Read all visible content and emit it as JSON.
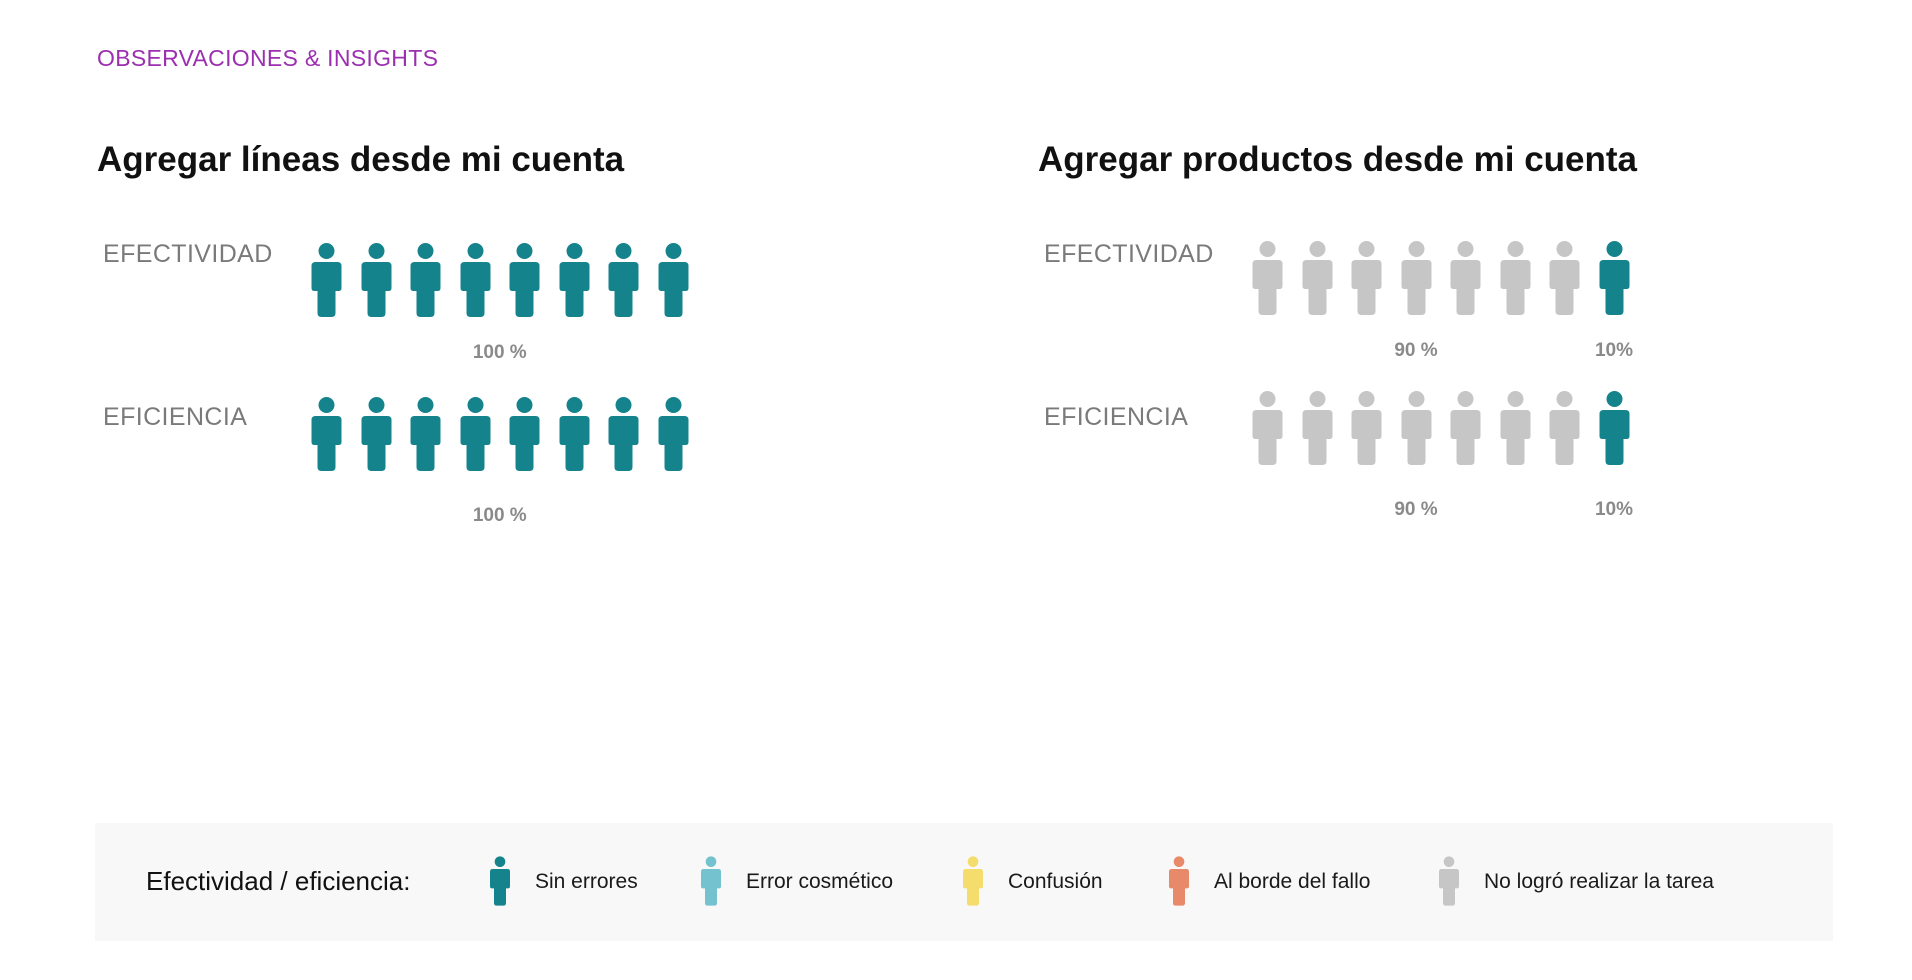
{
  "header": {
    "eyebrow": "OBSERVACIONES & INSIGHTS"
  },
  "colors": {
    "sin_errores": "#14838c",
    "error_cosmetico": "#74c1cf",
    "confusion": "#f4dd6c",
    "al_borde_del_fallo": "#e8896a",
    "no_logro": "#c6c6c6",
    "eyebrow": "#9b2fb0"
  },
  "panels": [
    {
      "title": "Agregar líneas desde mi cuenta",
      "rows": [
        {
          "label": "EFECTIVIDAD",
          "figures": [
            "sin_errores",
            "sin_errores",
            "sin_errores",
            "sin_errores",
            "sin_errores",
            "sin_errores",
            "sin_errores",
            "sin_errores"
          ],
          "percents": [
            {
              "text": "100 %",
              "share": 1.0
            }
          ]
        },
        {
          "label": "EFICIENCIA",
          "figures": [
            "sin_errores",
            "sin_errores",
            "sin_errores",
            "sin_errores",
            "sin_errores",
            "sin_errores",
            "sin_errores",
            "sin_errores"
          ],
          "percents": [
            {
              "text": "100 %",
              "share": 1.0
            }
          ]
        }
      ]
    },
    {
      "title": "Agregar productos desde mi cuenta",
      "rows": [
        {
          "label": "EFECTIVIDAD",
          "figures": [
            "no_logro",
            "no_logro",
            "no_logro",
            "no_logro",
            "no_logro",
            "no_logro",
            "no_logro",
            "sin_errores"
          ],
          "percents": [
            {
              "text": "90 %",
              "share": 0.9
            },
            {
              "text": "10%",
              "share": 0.1
            }
          ]
        },
        {
          "label": "EFICIENCIA",
          "figures": [
            "no_logro",
            "no_logro",
            "no_logro",
            "no_logro",
            "no_logro",
            "no_logro",
            "no_logro",
            "sin_errores"
          ],
          "percents": [
            {
              "text": "90 %",
              "share": 0.9
            },
            {
              "text": "10%",
              "share": 0.1
            }
          ]
        }
      ]
    }
  ],
  "legend": {
    "title": "Efectividad / eficiencia:",
    "items": [
      {
        "key": "sin_errores",
        "label": "Sin errores",
        "icon": "person-icon"
      },
      {
        "key": "error_cosmetico",
        "label": "Error cosmético",
        "icon": "person-icon"
      },
      {
        "key": "confusion",
        "label": "Confusión",
        "icon": "person-icon"
      },
      {
        "key": "al_borde_del_fallo",
        "label": "Al borde del fallo",
        "icon": "person-icon"
      },
      {
        "key": "no_logro",
        "label": "No logró realizar la tarea",
        "icon": "person-icon"
      }
    ]
  }
}
